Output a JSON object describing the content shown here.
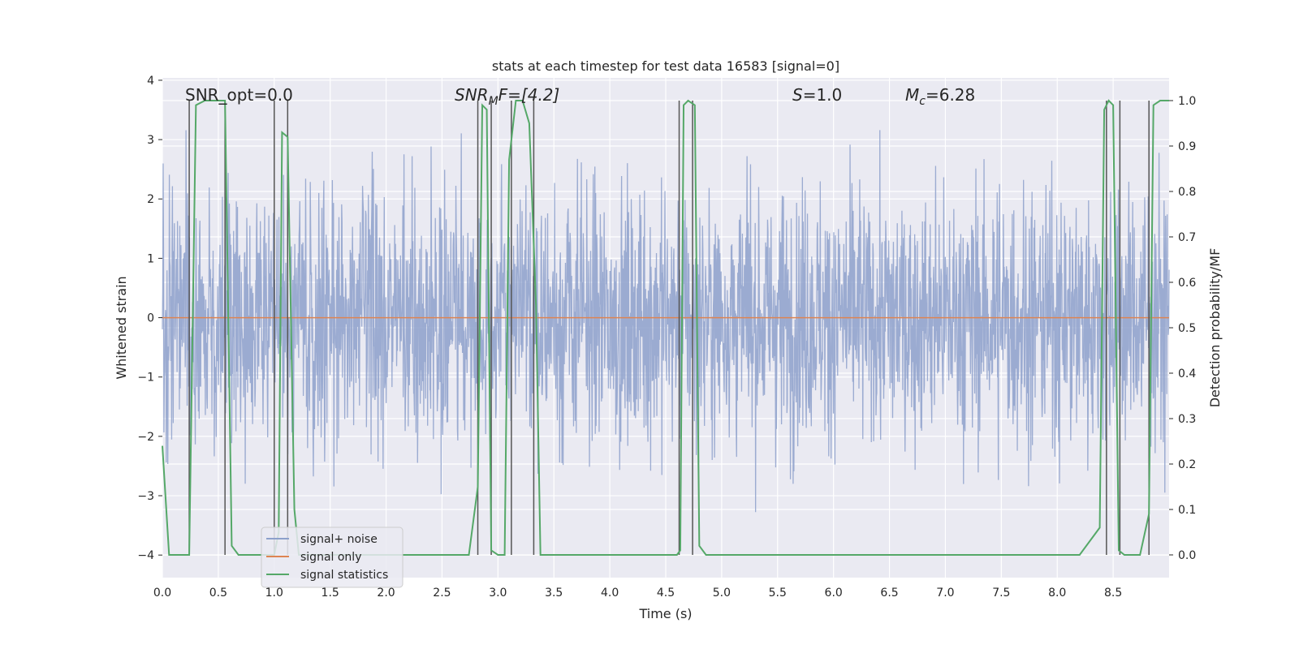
{
  "chart_data": {
    "type": "line",
    "title": "stats at each timestep for test data 16583 [signal=0]",
    "xlabel": "Time (s)",
    "ylabel_left": "Whitened strain",
    "ylabel_right": "Detection probability/MF",
    "xlim": [
      0.0,
      9.0
    ],
    "ylim_left": [
      -4.38,
      4.04
    ],
    "ylim_right": [
      -0.05,
      1.05
    ],
    "x_ticks": [
      "0.0",
      "0.5",
      "1.0",
      "1.5",
      "2.0",
      "2.5",
      "3.0",
      "3.5",
      "4.0",
      "4.5",
      "5.0",
      "5.5",
      "6.0",
      "6.5",
      "7.0",
      "7.5",
      "8.0",
      "8.5"
    ],
    "y_left_ticks": [
      "4",
      "3",
      "2",
      "1",
      "0",
      "−1",
      "−2",
      "−3",
      "−4"
    ],
    "y_right_ticks": [
      "1.0",
      "0.9",
      "0.8",
      "0.7",
      "0.6",
      "0.5",
      "0.4",
      "0.3",
      "0.2",
      "0.1",
      "0.0"
    ],
    "annotations": {
      "snr_opt": "SNR_opt=0.0",
      "snr_mf_prefix": "SNR",
      "snr_mf_sub": "M",
      "snr_mf_rest": "F=[4.2]",
      "s_var": "S",
      "s_rest": "=1.0",
      "mc_var": "M",
      "mc_sub": "c",
      "mc_rest": "=6.28"
    },
    "legend": {
      "position": "lower-left",
      "entries": [
        "signal+ noise",
        "signal only",
        "signal statistics"
      ]
    },
    "series": [
      {
        "name": "signal+ noise",
        "axis": "left",
        "color": "#8da0cb",
        "description": "whitened noise, amplitude ~ ±2.5, peaks to ±3.7"
      },
      {
        "name": "signal only",
        "axis": "left",
        "color": "#dd8452",
        "values_constant": 0
      },
      {
        "name": "signal statistics",
        "axis": "right",
        "color": "#55a868",
        "x": [
          0.0,
          0.06,
          0.24,
          0.3,
          0.38,
          0.44,
          0.56,
          0.62,
          0.68,
          0.76,
          1.0,
          1.04,
          1.07,
          1.12,
          1.18,
          1.22,
          1.3,
          2.6,
          2.74,
          2.82,
          2.86,
          2.9,
          2.94,
          3.0,
          3.06,
          3.1,
          3.16,
          3.22,
          3.28,
          3.34,
          3.38,
          3.5,
          4.0,
          4.6,
          4.63,
          4.66,
          4.7,
          4.76,
          4.8,
          4.86,
          5.0,
          6.0,
          7.0,
          7.5,
          8.0,
          8.2,
          8.38,
          8.42,
          8.46,
          8.5,
          8.55,
          8.6,
          8.66,
          8.74,
          8.82,
          8.86,
          8.92,
          9.0
        ],
        "values": [
          0.24,
          0.0,
          0.0,
          0.99,
          1.0,
          1.0,
          1.0,
          0.02,
          0.0,
          0.0,
          0.0,
          0.05,
          0.93,
          0.92,
          0.1,
          0.0,
          0.0,
          0.0,
          0.0,
          0.15,
          0.99,
          0.98,
          0.01,
          0.0,
          0.0,
          0.87,
          1.0,
          1.0,
          0.95,
          0.55,
          0.0,
          0.0,
          0.0,
          0.0,
          0.01,
          0.99,
          1.0,
          0.99,
          0.02,
          0.0,
          0.0,
          0.0,
          0.0,
          0.0,
          0.0,
          0.0,
          0.06,
          0.98,
          1.0,
          0.99,
          0.01,
          0.0,
          0.0,
          0.0,
          0.09,
          0.99,
          1.0,
          1.0
        ]
      }
    ],
    "event_markers_x": [
      0.24,
      0.56,
      1.0,
      1.12,
      2.82,
      2.94,
      3.12,
      3.32,
      4.62,
      4.74,
      8.44,
      8.56,
      8.82
    ],
    "colors": {
      "background": "#eaeaf2",
      "grid": "#ffffff",
      "noise": "#8da0cb",
      "signal_only": "#dd8452",
      "statistics": "#55a868",
      "markers": "#555555",
      "text": "#262626"
    }
  }
}
